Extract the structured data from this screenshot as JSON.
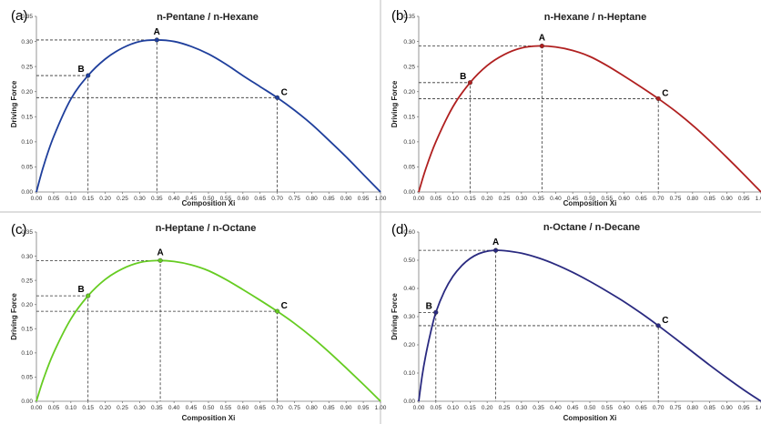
{
  "chart_data": [
    {
      "type": "line",
      "panel_label": "(a)",
      "title": "n-Pentane / n-Hexane",
      "xlabel": "Composition Xi",
      "ylabel": "Driving Force",
      "xlim": [
        0,
        1
      ],
      "ylim": [
        0,
        0.35
      ],
      "xticks": [
        "0.00",
        "0.05",
        "0.10",
        "0.15",
        "0.20",
        "0.25",
        "0.30",
        "0.35",
        "0.40",
        "0.45",
        "0.50",
        "0.55",
        "0.60",
        "0.65",
        "0.70",
        "0.75",
        "0.80",
        "0.85",
        "0.90",
        "0.95",
        "1.00"
      ],
      "yticks": [
        "0.00",
        "0.05",
        "0.10",
        "0.15",
        "0.20",
        "0.25",
        "0.30",
        "0.35"
      ],
      "color": "#1f3f9c",
      "grid": false,
      "curve": {
        "x": [
          0,
          0.02,
          0.05,
          0.1,
          0.15,
          0.2,
          0.25,
          0.3,
          0.35,
          0.4,
          0.45,
          0.5,
          0.55,
          0.6,
          0.65,
          0.7,
          0.75,
          0.8,
          0.85,
          0.9,
          0.95,
          1.0
        ],
        "y": [
          0,
          0.05,
          0.11,
          0.185,
          0.232,
          0.265,
          0.287,
          0.3,
          0.303,
          0.3,
          0.29,
          0.275,
          0.255,
          0.232,
          0.21,
          0.188,
          0.163,
          0.135,
          0.103,
          0.07,
          0.035,
          0
        ]
      },
      "points": [
        {
          "label": "A",
          "x": 0.35,
          "y": 0.303
        },
        {
          "label": "B",
          "x": 0.15,
          "y": 0.232
        },
        {
          "label": "C",
          "x": 0.7,
          "y": 0.188
        }
      ]
    },
    {
      "type": "line",
      "panel_label": "(b)",
      "title": "n-Hexane / n-Heptane",
      "xlabel": "Composition Xi",
      "ylabel": "Driving Force",
      "xlim": [
        0,
        1
      ],
      "ylim": [
        0,
        0.35
      ],
      "xticks": [
        "0.00",
        "0.05",
        "0.10",
        "0.15",
        "0.20",
        "0.25",
        "0.30",
        "0.35",
        "0.40",
        "0.45",
        "0.50",
        "0.55",
        "0.60",
        "0.65",
        "0.70",
        "0.75",
        "0.80",
        "0.85",
        "0.90",
        "0.95",
        "1.00"
      ],
      "yticks": [
        "0.00",
        "0.05",
        "0.10",
        "0.15",
        "0.20",
        "0.25",
        "0.30",
        "0.35"
      ],
      "color": "#b02020",
      "grid": false,
      "curve": {
        "x": [
          0,
          0.02,
          0.05,
          0.1,
          0.15,
          0.2,
          0.25,
          0.3,
          0.35,
          0.4,
          0.45,
          0.5,
          0.55,
          0.6,
          0.65,
          0.7,
          0.75,
          0.8,
          0.85,
          0.9,
          0.95,
          1.0
        ],
        "y": [
          0,
          0.045,
          0.1,
          0.17,
          0.218,
          0.252,
          0.274,
          0.287,
          0.291,
          0.289,
          0.282,
          0.27,
          0.252,
          0.231,
          0.209,
          0.186,
          0.161,
          0.133,
          0.102,
          0.069,
          0.035,
          0
        ]
      },
      "points": [
        {
          "label": "A",
          "x": 0.36,
          "y": 0.291
        },
        {
          "label": "B",
          "x": 0.15,
          "y": 0.218
        },
        {
          "label": "C",
          "x": 0.7,
          "y": 0.186
        }
      ]
    },
    {
      "type": "line",
      "panel_label": "(c)",
      "title": "n-Heptane / n-Octane",
      "xlabel": "Composition Xi",
      "ylabel": "Driving Force",
      "xlim": [
        0,
        1
      ],
      "ylim": [
        0,
        0.35
      ],
      "xticks": [
        "0.00",
        "0.05",
        "0.10",
        "0.15",
        "0.20",
        "0.25",
        "0.30",
        "0.35",
        "0.40",
        "0.45",
        "0.50",
        "0.55",
        "0.60",
        "0.65",
        "0.70",
        "0.75",
        "0.80",
        "0.85",
        "0.90",
        "0.95",
        "1.00"
      ],
      "yticks": [
        "0.00",
        "0.05",
        "0.10",
        "0.15",
        "0.20",
        "0.25",
        "0.30",
        "0.35"
      ],
      "color": "#66cc22",
      "grid": false,
      "curve": {
        "x": [
          0,
          0.02,
          0.05,
          0.1,
          0.15,
          0.2,
          0.25,
          0.3,
          0.35,
          0.4,
          0.45,
          0.5,
          0.55,
          0.6,
          0.65,
          0.7,
          0.75,
          0.8,
          0.85,
          0.9,
          0.95,
          1.0
        ],
        "y": [
          0,
          0.045,
          0.1,
          0.17,
          0.218,
          0.252,
          0.274,
          0.287,
          0.291,
          0.289,
          0.282,
          0.27,
          0.252,
          0.231,
          0.209,
          0.186,
          0.161,
          0.133,
          0.102,
          0.069,
          0.035,
          0
        ]
      },
      "points": [
        {
          "label": "A",
          "x": 0.36,
          "y": 0.291
        },
        {
          "label": "B",
          "x": 0.15,
          "y": 0.218
        },
        {
          "label": "C",
          "x": 0.7,
          "y": 0.186
        }
      ]
    },
    {
      "type": "line",
      "panel_label": "(d)",
      "title": "n-Octane / n-Decane",
      "xlabel": "Composition Xi",
      "ylabel": "Driving Force",
      "xlim": [
        0,
        1
      ],
      "ylim": [
        0,
        0.6
      ],
      "xticks": [
        "0.00",
        "0.05",
        "0.10",
        "0.15",
        "0.20",
        "0.25",
        "0.30",
        "0.35",
        "0.40",
        "0.45",
        "0.50",
        "0.55",
        "0.60",
        "0.65",
        "0.70",
        "0.75",
        "0.80",
        "0.85",
        "0.90",
        "0.95",
        "1.00"
      ],
      "yticks": [
        "0.00",
        "0.10",
        "0.20",
        "0.30",
        "0.40",
        "0.50",
        "0.60"
      ],
      "color": "#2a2a80",
      "grid": false,
      "curve": {
        "x": [
          0,
          0.01,
          0.02,
          0.035,
          0.05,
          0.075,
          0.1,
          0.125,
          0.15,
          0.175,
          0.2,
          0.225,
          0.25,
          0.3,
          0.35,
          0.4,
          0.45,
          0.5,
          0.55,
          0.6,
          0.65,
          0.7,
          0.75,
          0.8,
          0.85,
          0.9,
          0.95,
          1.0
        ],
        "y": [
          0,
          0.09,
          0.16,
          0.245,
          0.315,
          0.39,
          0.443,
          0.48,
          0.506,
          0.523,
          0.532,
          0.535,
          0.534,
          0.525,
          0.508,
          0.485,
          0.457,
          0.425,
          0.39,
          0.353,
          0.312,
          0.268,
          0.222,
          0.175,
          0.128,
          0.083,
          0.04,
          0
        ]
      },
      "points": [
        {
          "label": "A",
          "x": 0.225,
          "y": 0.535
        },
        {
          "label": "B",
          "x": 0.05,
          "y": 0.315
        },
        {
          "label": "C",
          "x": 0.7,
          "y": 0.268
        }
      ]
    }
  ]
}
